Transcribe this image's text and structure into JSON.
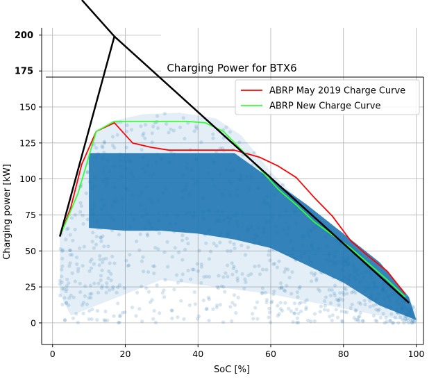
{
  "chart_data": {
    "type": "scatter",
    "title": "Charging Power for BTX6",
    "xlabel": "SoC [%]",
    "ylabel": "Charging power [kW]",
    "xlim": [
      -3,
      102
    ],
    "ylim": [
      -15,
      205
    ],
    "x_ticks": [
      0,
      20,
      40,
      60,
      80,
      100
    ],
    "y_ticks": [
      0,
      25,
      50,
      75,
      100,
      125,
      150
    ],
    "y_ticks_bold": [
      175,
      200
    ],
    "grid": true,
    "legend": "top-right",
    "scatter_color": "#1f77b4",
    "scatter_region": {
      "name": "",
      "upper_envelope": [
        [
          2,
          60
        ],
        [
          8,
          110
        ],
        [
          12,
          132
        ],
        [
          16,
          140
        ],
        [
          25,
          145
        ],
        [
          35,
          146
        ],
        [
          45,
          142
        ],
        [
          52,
          130
        ],
        [
          60,
          105
        ],
        [
          70,
          80
        ],
        [
          80,
          58
        ],
        [
          90,
          35
        ],
        [
          98,
          15
        ],
        [
          100,
          10
        ]
      ],
      "dense_band": [
        [
          10,
          118
        ],
        [
          50,
          118
        ],
        [
          60,
          100
        ],
        [
          70,
          82
        ],
        [
          80,
          62
        ],
        [
          90,
          42
        ],
        [
          98,
          18
        ],
        [
          100,
          2
        ],
        [
          90,
          12
        ],
        [
          80,
          28
        ],
        [
          70,
          40
        ],
        [
          60,
          52
        ],
        [
          50,
          58
        ],
        [
          40,
          62
        ],
        [
          30,
          64
        ],
        [
          20,
          64
        ],
        [
          10,
          66
        ]
      ]
    },
    "series": [
      {
        "name": "ABRP May 2019 Charge Curve",
        "color": "#ff0000",
        "x": [
          2,
          5,
          8,
          12,
          17,
          22,
          27,
          32,
          40,
          50,
          57,
          62,
          67,
          72,
          77,
          82,
          87,
          92,
          97
        ],
        "y": [
          60,
          80,
          110,
          133,
          139,
          125,
          122,
          120,
          120,
          120,
          115,
          109,
          101,
          87,
          74,
          57,
          46,
          36,
          20
        ]
      },
      {
        "name": "ABRP New Charge Curve",
        "color": "#33ff33",
        "x": [
          2,
          7,
          12,
          17,
          27,
          37,
          42,
          47,
          52,
          57,
          62,
          67,
          72,
          77,
          82,
          87,
          92,
          97
        ],
        "y": [
          60,
          90,
          133,
          140,
          140,
          140,
          139,
          133,
          120,
          107,
          93,
          82,
          70,
          61,
          52,
          41,
          30,
          18
        ]
      },
      {
        "name": "",
        "color": "#000000",
        "x": [
          2,
          17,
          98
        ],
        "y": [
          60,
          199,
          14
        ]
      }
    ],
    "overlay_line": {
      "color": "#000000",
      "x": [
        7,
        17
      ],
      "y": [
        215,
        199
      ]
    },
    "series_labels": [
      {
        "name": "ABRP May 2019 Charge Curve",
        "color": "#ff0000"
      },
      {
        "name": "ABRP New Charge Curve",
        "color": "#33ff33"
      }
    ]
  }
}
